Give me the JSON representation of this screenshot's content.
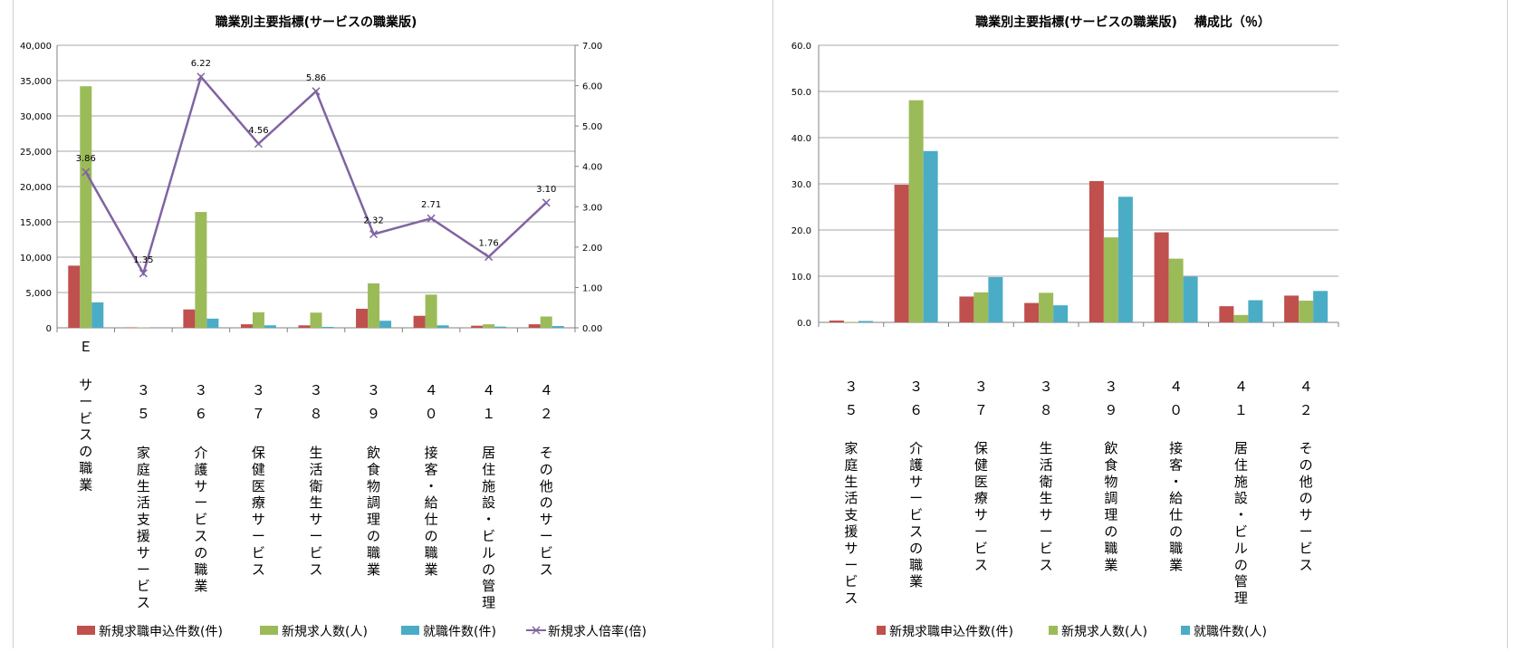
{
  "colors": {
    "red": "#c0504d",
    "green": "#9bbb59",
    "blue": "#4bacc6",
    "purple": "#8064a2",
    "grid": "#a6a6a6"
  },
  "chart_data": [
    {
      "type": "bar",
      "title": "職業別主要指標(サービスの職業版)",
      "categories": [
        {
          "code": "Ｅ",
          "label": "サービスの職業"
        },
        {
          "code": "３５",
          "label": "家庭生活支援サービス"
        },
        {
          "code": "３６",
          "label": "介護サービスの職業"
        },
        {
          "code": "３７",
          "label": "保健医療サービス"
        },
        {
          "code": "３８",
          "label": "生活衛生サービス"
        },
        {
          "code": "３９",
          "label": "飲食物調理の職業"
        },
        {
          "code": "４０",
          "label": "接客・給仕の職業"
        },
        {
          "code": "４１",
          "label": "居住施設・ビルの管理"
        },
        {
          "code": "４２",
          "label": "その他のサービス"
        }
      ],
      "ylim": [
        0,
        40000
      ],
      "y_ticks": [
        "0",
        "5,000",
        "10,000",
        "15,000",
        "20,000",
        "25,000",
        "30,000",
        "35,000",
        "40,000"
      ],
      "y2lim": [
        0,
        7
      ],
      "y2_ticks": [
        "0.00",
        "1.00",
        "2.00",
        "3.00",
        "4.00",
        "5.00",
        "6.00",
        "7.00"
      ],
      "grid": true,
      "legend_position": "bottom",
      "series": [
        {
          "name": "新規求職申込件数(件)",
          "kind": "bar",
          "color": "red",
          "values": [
            8800,
            50,
            2600,
            500,
            350,
            2700,
            1700,
            300,
            500
          ]
        },
        {
          "name": "新規求人数(人)",
          "kind": "bar",
          "color": "green",
          "values": [
            34200,
            60,
            16400,
            2200,
            2150,
            6300,
            4700,
            500,
            1600
          ]
        },
        {
          "name": "就職件数(件)",
          "kind": "bar",
          "color": "blue",
          "values": [
            3600,
            15,
            1300,
            350,
            130,
            1000,
            350,
            170,
            250
          ]
        },
        {
          "name": "新規求人倍率(倍)",
          "kind": "line",
          "axis": "right",
          "color": "purple",
          "values": [
            3.86,
            1.35,
            6.22,
            4.56,
            5.86,
            2.32,
            2.71,
            1.76,
            3.1
          ],
          "labels": [
            "3.86",
            "1.35",
            "6.22",
            "4.56",
            "5.86",
            "2.32",
            "2.71",
            "1.76",
            "3.10"
          ]
        }
      ]
    },
    {
      "type": "bar",
      "title": "職業別主要指標(サービスの職業版)　 構成比（％）",
      "categories": [
        {
          "code": "３５",
          "label": "家庭生活支援サービス"
        },
        {
          "code": "３６",
          "label": "介護サービスの職業"
        },
        {
          "code": "３７",
          "label": "保健医療サービス"
        },
        {
          "code": "３８",
          "label": "生活衛生サービス"
        },
        {
          "code": "３９",
          "label": "飲食物調理の職業"
        },
        {
          "code": "４０",
          "label": "接客・給仕の職業"
        },
        {
          "code": "４１",
          "label": "居住施設・ビルの管理"
        },
        {
          "code": "４２",
          "label": "その他のサービス"
        }
      ],
      "ylim": [
        0,
        60
      ],
      "y_ticks": [
        "0.0",
        "10.0",
        "20.0",
        "30.0",
        "40.0",
        "50.0",
        "60.0"
      ],
      "grid": true,
      "legend_position": "bottom",
      "series": [
        {
          "name": "新規求職申込件数(件)",
          "kind": "bar",
          "color": "red",
          "values": [
            0.4,
            29.8,
            5.6,
            4.2,
            30.6,
            19.5,
            3.5,
            5.8
          ]
        },
        {
          "name": "新規求人数(人)",
          "kind": "bar",
          "color": "green",
          "values": [
            0.1,
            48.1,
            6.5,
            6.4,
            18.4,
            13.8,
            1.6,
            4.7
          ]
        },
        {
          "name": "就職件数(人)",
          "kind": "bar",
          "color": "blue",
          "values": [
            0.3,
            37.1,
            9.8,
            3.7,
            27.2,
            9.9,
            4.8,
            6.8
          ]
        }
      ]
    }
  ]
}
